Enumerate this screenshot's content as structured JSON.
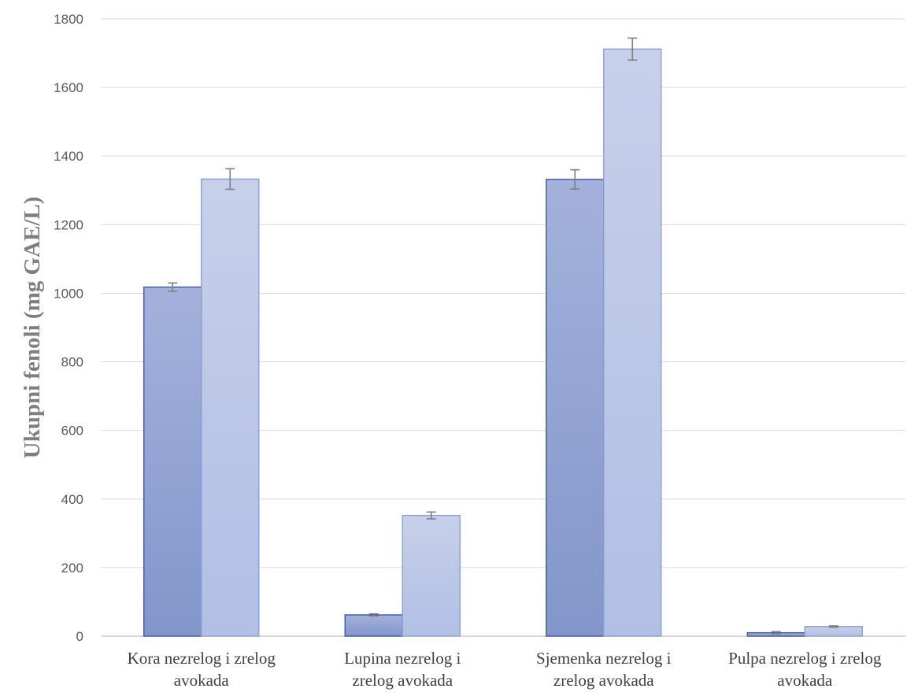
{
  "chart_data": {
    "type": "bar",
    "title": "",
    "xlabel": "",
    "ylabel": "Ukupni fenoli (mg GAE/L)",
    "ylim": [
      0,
      1800
    ],
    "yticks": [
      0,
      200,
      400,
      600,
      800,
      1000,
      1200,
      1400,
      1600,
      1800
    ],
    "grid": true,
    "legend": "none",
    "categories": [
      [
        "Kora nezrelog i zrelog",
        "avokada"
      ],
      [
        "Lupina nezrelog i",
        "zrelog avokada"
      ],
      [
        "Sjemenka nezrelog i",
        "zrelog avokada"
      ],
      [
        "Pulpa nezrelog i zrelog",
        "avokada"
      ]
    ],
    "series": [
      {
        "values": [
          1018,
          62,
          1332,
          10
        ],
        "errors": [
          12,
          3,
          28,
          3
        ],
        "color_top": "#a4b1dc",
        "color_bottom": "#8296cb",
        "stroke": "#3d5a99"
      },
      {
        "values": [
          1333,
          352,
          1712,
          28
        ],
        "errors": [
          30,
          10,
          32,
          2
        ],
        "color_top": "#c7d0ea",
        "color_bottom": "#b1bfe4",
        "stroke": "#8a9fd3"
      }
    ]
  }
}
